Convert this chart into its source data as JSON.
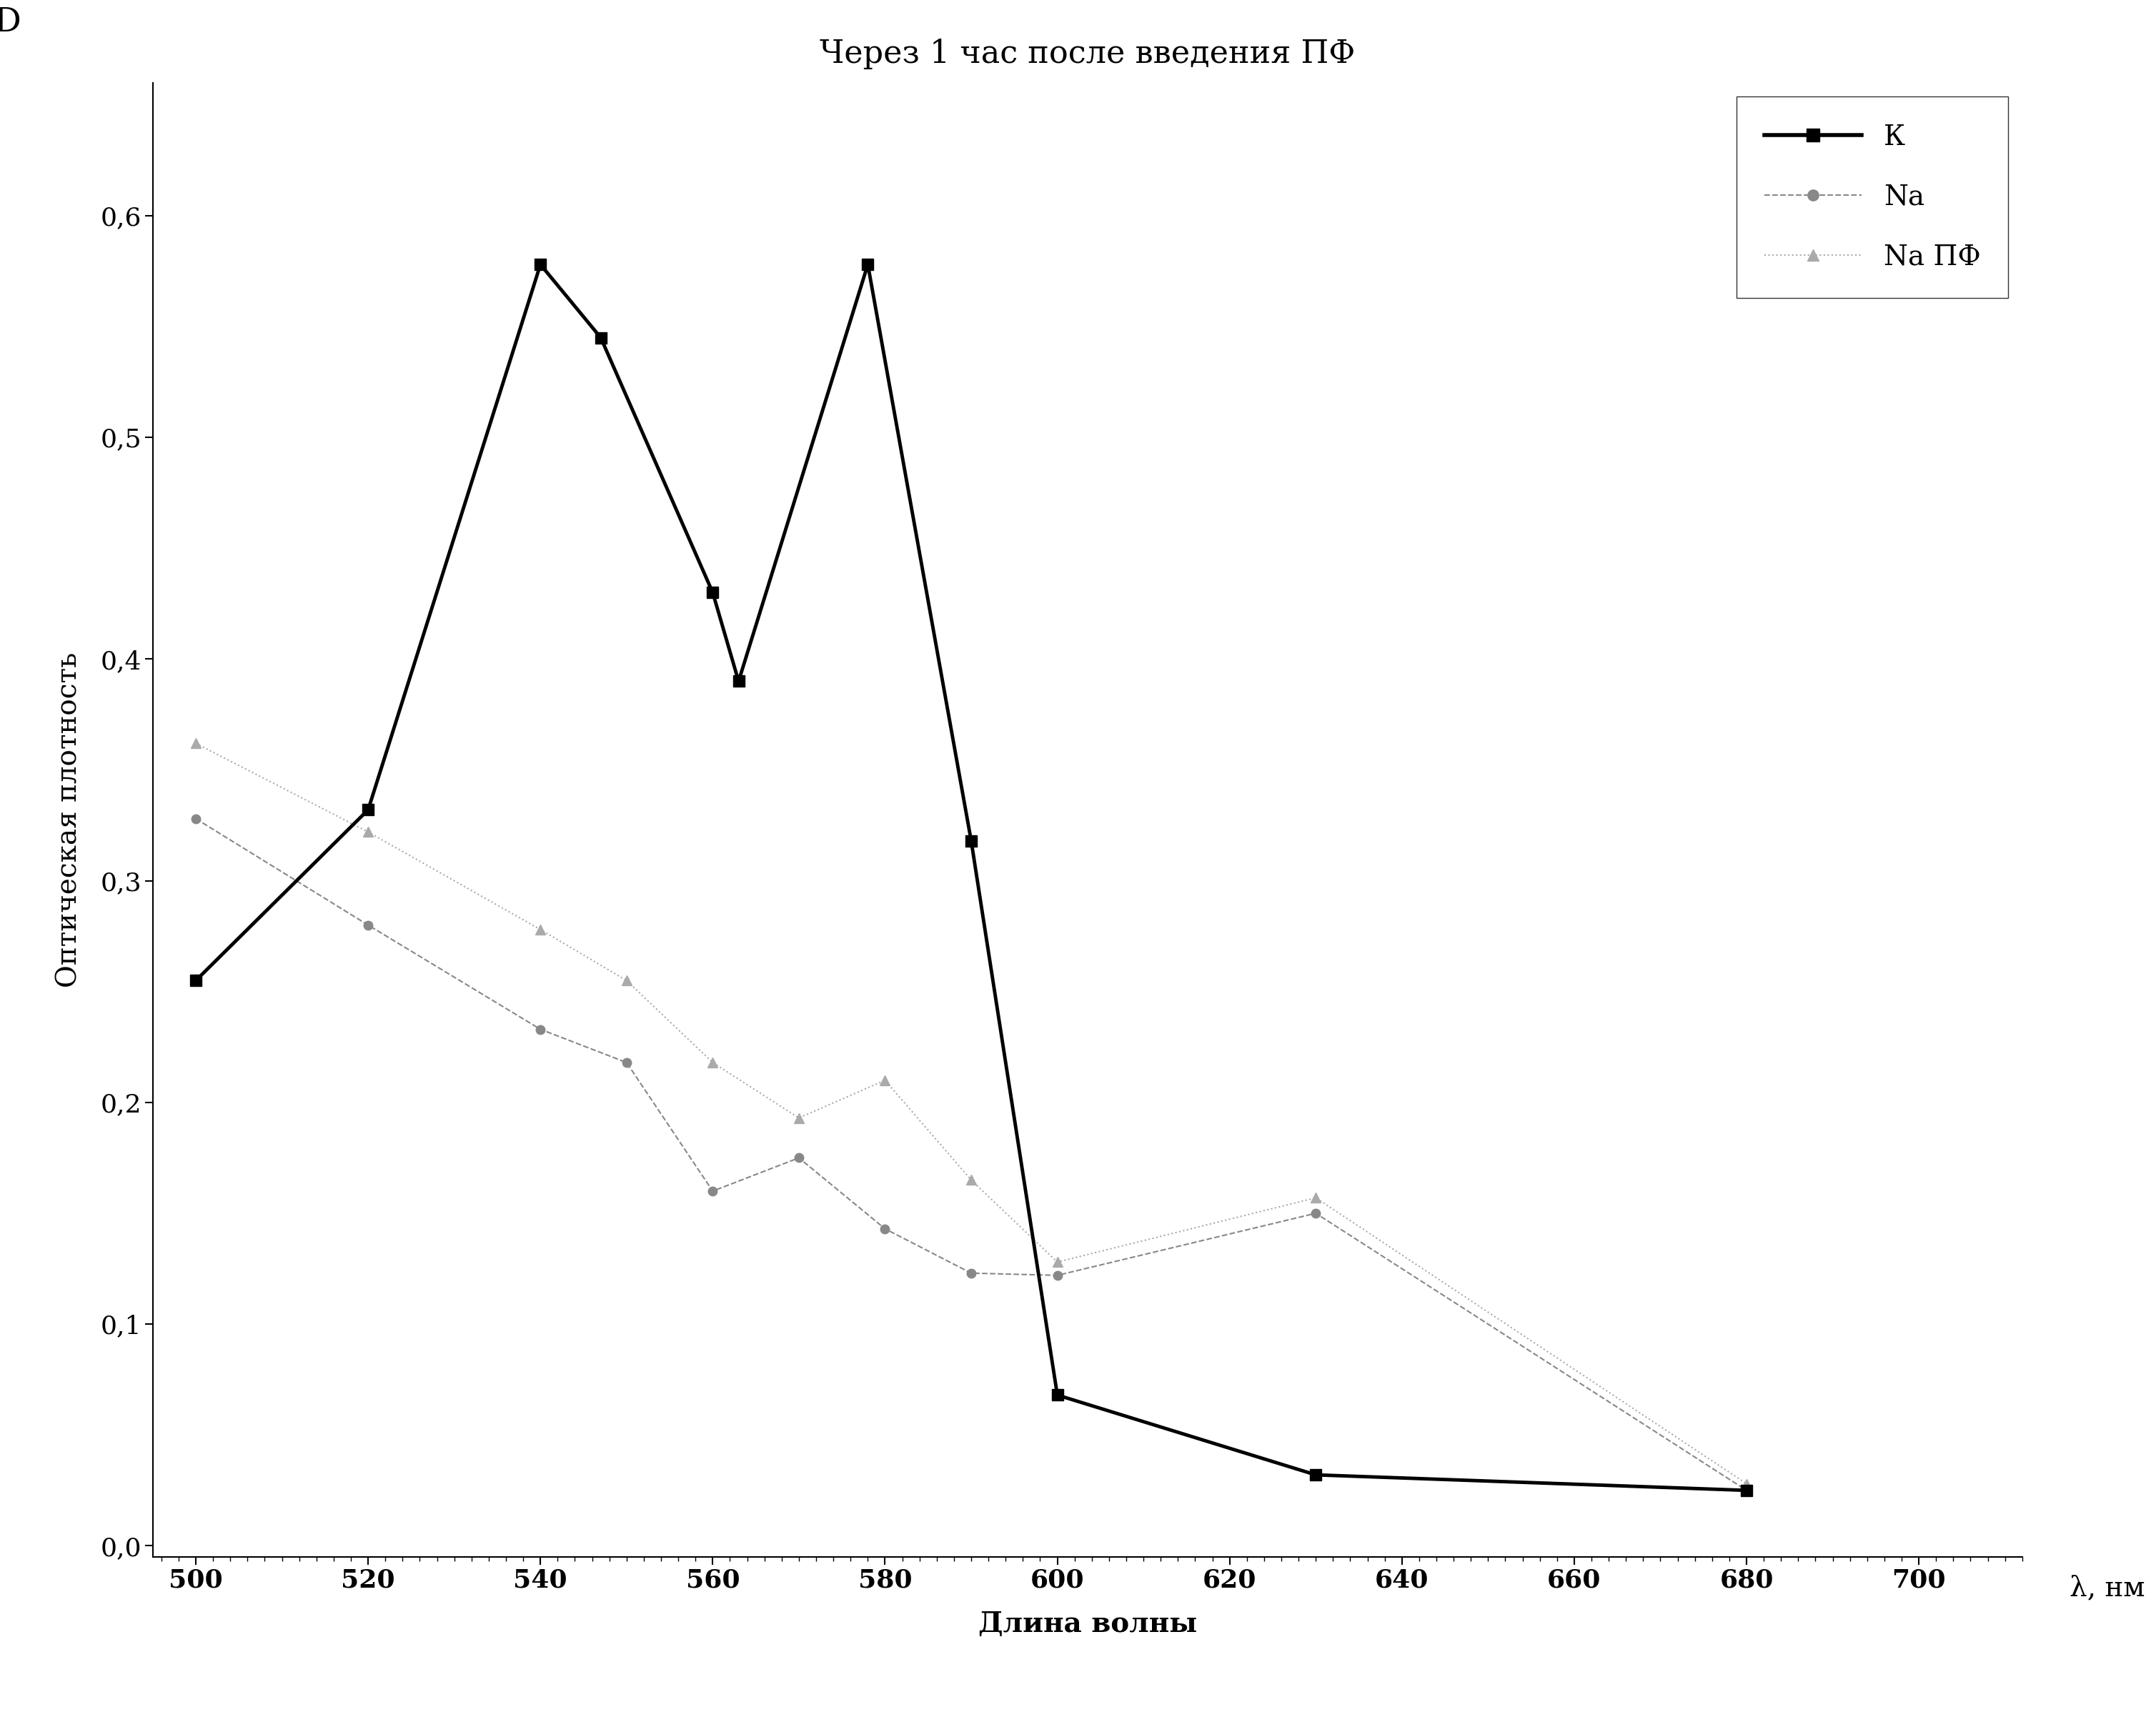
{
  "title": "Через 1 час после введения ПФ",
  "label_D": "D",
  "xlabel": "Длина волны",
  "ylabel": "Оптическая плотность",
  "lambda_label": "λ, нм",
  "xlim": [
    495,
    712
  ],
  "ylim": [
    -0.005,
    0.66
  ],
  "xticks": [
    500,
    520,
    540,
    560,
    580,
    600,
    620,
    640,
    660,
    680,
    700
  ],
  "yticks": [
    0.0,
    0.1,
    0.2,
    0.3,
    0.4,
    0.5,
    0.6
  ],
  "ytick_labels": [
    "0,0",
    "0,1",
    "0,2",
    "0,3",
    "0,4",
    "0,5",
    "0,6"
  ],
  "series_K": {
    "label": "К",
    "x": [
      500,
      520,
      540,
      547,
      560,
      563,
      578,
      590,
      600,
      630,
      680
    ],
    "y": [
      0.255,
      0.332,
      0.578,
      0.545,
      0.43,
      0.39,
      0.578,
      0.318,
      0.068,
      0.032,
      0.025
    ],
    "color": "#000000",
    "linewidth": 3.5,
    "linestyle": "-",
    "marker": "s",
    "markersize": 11
  },
  "series_Na": {
    "label": "Na",
    "x": [
      500,
      520,
      540,
      550,
      560,
      570,
      580,
      590,
      600,
      630,
      680
    ],
    "y": [
      0.328,
      0.28,
      0.233,
      0.218,
      0.16,
      0.175,
      0.143,
      0.123,
      0.122,
      0.15,
      0.025
    ],
    "color": "#888888",
    "linewidth": 1.5,
    "linestyle": "--",
    "marker": "o",
    "markersize": 9
  },
  "series_NaPF": {
    "label": "Na ПФ",
    "x": [
      500,
      520,
      540,
      550,
      560,
      570,
      580,
      590,
      600,
      630,
      680
    ],
    "y": [
      0.362,
      0.322,
      0.278,
      0.255,
      0.218,
      0.193,
      0.21,
      0.165,
      0.128,
      0.157,
      0.028
    ],
    "color": "#aaaaaa",
    "linewidth": 1.5,
    "linestyle": ":",
    "marker": "^",
    "markersize": 10
  },
  "background_color": "#ffffff",
  "title_fontsize": 32,
  "label_fontsize": 28,
  "tick_fontsize": 26,
  "legend_fontsize": 28,
  "D_fontsize": 34
}
